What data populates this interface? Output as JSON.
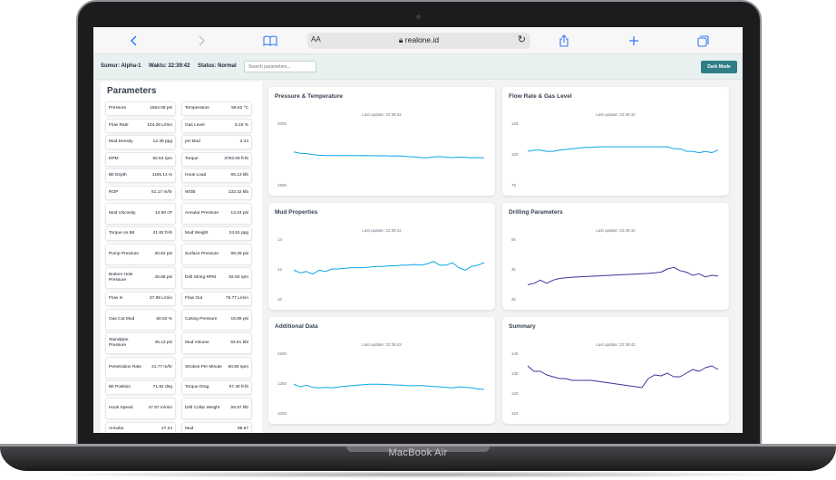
{
  "device": {
    "brand": "MacBook Air"
  },
  "browser": {
    "aa": "AA",
    "url": "realone.id",
    "icons": [
      "chevron-left-icon",
      "chevron-right-icon",
      "book-icon",
      "reload-icon",
      "share-icon",
      "plus-icon",
      "tabs-icon"
    ]
  },
  "header": {
    "sumur": "Sumur: Alpha-1",
    "waktu": "Waktu: 22:39:42",
    "status": "Status: Normal",
    "search_placeholder": "Search parameters...",
    "dark_mode_label": "Dark Mode"
  },
  "sidebar": {
    "title": "Parameters",
    "params": [
      {
        "name": "Pressure",
        "value": "1564.08 psi"
      },
      {
        "name": "Temperature",
        "value": "59.62 °C"
      },
      {
        "name": "Flow Rate",
        "value": "104.28 L/min"
      },
      {
        "name": "Gas Level",
        "value": "5.18 %"
      },
      {
        "name": "Mud Density",
        "value": "12.38 ppg"
      },
      {
        "name": "pH Mud",
        "value": "3.44"
      },
      {
        "name": "RPM",
        "value": "92.64 rpm"
      },
      {
        "name": "Torque",
        "value": "3763.09 ft-lb"
      },
      {
        "name": "Bit Depth",
        "value": "1165.14 m"
      },
      {
        "name": "Hook Load",
        "value": "65.13 klb"
      },
      {
        "name": "ROP",
        "value": "51.17 m/hr"
      },
      {
        "name": "WOB",
        "value": "133.42 klb"
      },
      {
        "name": "Mud Viscosity",
        "value": "14.60 cP",
        "tall": true
      },
      {
        "name": "Annular Pressure",
        "value": "13.24 psi",
        "tall": true
      },
      {
        "name": "Torque on Bit",
        "value": "41.82 ft-lb"
      },
      {
        "name": "Mud Weight",
        "value": "24.51 ppg"
      },
      {
        "name": "Pump Pressure",
        "value": "30.62 psi",
        "tall": true
      },
      {
        "name": "Surface Pressure",
        "value": "99.29 psi",
        "tall": true
      },
      {
        "name": "Bottom Hole Pressure",
        "value": "46.85 psi",
        "tall": true
      },
      {
        "name": "Drill String RPM",
        "value": "92.90 rpm",
        "tall": true
      },
      {
        "name": "Flow In",
        "value": "37.99 L/min"
      },
      {
        "name": "Flow Out",
        "value": "76.77 L/min"
      },
      {
        "name": "Gas Cut Mud",
        "value": "50.82 %",
        "tall": true
      },
      {
        "name": "Casing Pressure",
        "value": "15.89 psi",
        "tall": true
      },
      {
        "name": "Standpipe Pressure",
        "value": "46.13 psi",
        "tall": true
      },
      {
        "name": "Mud Volume",
        "value": "93.91 bbl",
        "tall": true
      },
      {
        "name": "Penetration Rate",
        "value": "21.77 m/hr",
        "tall": true
      },
      {
        "name": "Strokes Per Minute",
        "value": "60.80 spm",
        "tall": true
      },
      {
        "name": "Bit Position",
        "value": "71.82 deg"
      },
      {
        "name": "Torque Drag",
        "value": "57.40 ft-lb"
      },
      {
        "name": "Hook Speed",
        "value": "47.97 m/min",
        "tall": true
      },
      {
        "name": "Drill Collar Weight",
        "value": "59.97 klb",
        "tall": true
      },
      {
        "name": "Annular",
        "value": "27.24"
      },
      {
        "name": "Mud",
        "value": "98.67"
      }
    ]
  },
  "chart_data": [
    {
      "type": "line",
      "title": "Pressure & Temperature",
      "updated": "Last update: 22:39:42",
      "yticks": [
        "2000",
        "1500"
      ],
      "ylim": [
        1100,
        2100
      ],
      "color": "#0ea5e9",
      "x": [
        0,
        1,
        2,
        3,
        4,
        5,
        6,
        7,
        8,
        9,
        10,
        11,
        12,
        13,
        14,
        15,
        16,
        17,
        18,
        19,
        20,
        21,
        22,
        23,
        24,
        25,
        26,
        27,
        28,
        29,
        30
      ],
      "values": [
        1630,
        1610,
        1605,
        1590,
        1580,
        1575,
        1575,
        1578,
        1575,
        1576,
        1574,
        1575,
        1573,
        1572,
        1574,
        1570,
        1571,
        1568,
        1560,
        1555,
        1545,
        1540,
        1555,
        1560,
        1550,
        1545,
        1552,
        1548,
        1540,
        1545,
        1540
      ]
    },
    {
      "type": "line",
      "title": "Flow Rate & Gas Level",
      "updated": "Last update: 22:39:42",
      "yticks": [
        "125",
        "100",
        "75"
      ],
      "ylim": [
        75,
        125
      ],
      "color": "#0ea5e9",
      "x": [
        0,
        1,
        2,
        3,
        4,
        5,
        6,
        7,
        8,
        9,
        10,
        11,
        12,
        13,
        14,
        15,
        16,
        17,
        18,
        19,
        20,
        21,
        22,
        23,
        24,
        25,
        26,
        27,
        28,
        29,
        30
      ],
      "values": [
        102,
        103,
        103,
        102,
        102,
        103,
        103.5,
        104,
        104.5,
        105,
        105,
        105.5,
        105.5,
        105.5,
        105.5,
        105.5,
        105.5,
        105.5,
        105.5,
        105.5,
        105.5,
        105.5,
        105.5,
        104,
        104,
        102,
        102,
        101,
        102,
        101,
        103
      ]
    },
    {
      "type": "line",
      "title": "Mud Properties",
      "updated": "Last update: 22:39:42",
      "yticks": [
        "14",
        "12",
        "10"
      ],
      "ylim": [
        9.5,
        14.5
      ],
      "color": "#0ea5e9",
      "x": [
        0,
        1,
        2,
        3,
        4,
        5,
        6,
        7,
        8,
        9,
        10,
        11,
        12,
        13,
        14,
        15,
        16,
        17,
        18,
        19,
        20,
        21,
        22,
        23,
        24,
        25,
        26,
        27,
        28,
        29,
        30
      ],
      "values": [
        11.9,
        11.7,
        11.8,
        11.6,
        11.9,
        11.8,
        12.0,
        12.0,
        12.05,
        12.1,
        12.1,
        12.1,
        12.15,
        12.2,
        12.2,
        12.25,
        12.25,
        12.3,
        12.3,
        12.35,
        12.3,
        12.4,
        12.6,
        12.3,
        12.3,
        12.5,
        12.1,
        11.9,
        12.2,
        12.3,
        12.5
      ]
    },
    {
      "type": "line",
      "title": "Drilling Parameters",
      "updated": "Last update: 22:39:42",
      "yticks": [
        "5k",
        "4k",
        "3k"
      ],
      "ylim": [
        3000,
        5000
      ],
      "color": "#4c2c9c",
      "x": [
        0,
        1,
        2,
        3,
        4,
        5,
        6,
        7,
        8,
        9,
        10,
        11,
        12,
        13,
        14,
        15,
        16,
        17,
        18,
        19,
        20,
        21,
        22,
        23,
        24,
        25,
        26,
        27,
        28,
        29,
        30
      ],
      "values": [
        3500,
        3550,
        3650,
        3550,
        3650,
        3700,
        3720,
        3740,
        3750,
        3760,
        3770,
        3780,
        3790,
        3800,
        3810,
        3820,
        3830,
        3840,
        3850,
        3860,
        3880,
        3900,
        4000,
        4050,
        3950,
        3900,
        3800,
        3850,
        3750,
        3800,
        3780
      ]
    },
    {
      "type": "line",
      "title": "Additional Data",
      "updated": "Last update: 22:39:42",
      "yticks": [
        "1500",
        "1250",
        "1000"
      ],
      "ylim": [
        950,
        1550
      ],
      "color": "#0ea5e9",
      "x": [
        0,
        1,
        2,
        3,
        4,
        5,
        6,
        7,
        8,
        9,
        10,
        11,
        12,
        13,
        14,
        15,
        16,
        17,
        18,
        19,
        20,
        21,
        22,
        23,
        24,
        25,
        26,
        27,
        28,
        29,
        30
      ],
      "values": [
        1240,
        1215,
        1230,
        1210,
        1205,
        1210,
        1205,
        1212,
        1220,
        1225,
        1230,
        1235,
        1240,
        1240,
        1238,
        1235,
        1232,
        1230,
        1225,
        1225,
        1228,
        1222,
        1218,
        1215,
        1210,
        1205,
        1215,
        1210,
        1205,
        1195,
        1190
      ]
    },
    {
      "type": "line",
      "title": "Summary",
      "updated": "Last update: 22:39:42",
      "yticks": [
        "140",
        "130",
        "120",
        "110"
      ],
      "ylim": [
        110,
        145
      ],
      "color": "#4c2c9c",
      "x": [
        0,
        1,
        2,
        3,
        4,
        5,
        6,
        7,
        8,
        9,
        10,
        11,
        12,
        13,
        14,
        15,
        16,
        17,
        18,
        19,
        20,
        21,
        22,
        23,
        24,
        25,
        26,
        27,
        28,
        29,
        30
      ],
      "values": [
        137,
        134,
        134,
        132,
        131,
        130,
        130,
        129,
        129,
        129,
        129,
        128.5,
        128,
        127.5,
        127,
        126.5,
        126,
        125.5,
        125,
        130,
        132,
        131.5,
        133,
        131,
        131,
        133,
        135,
        134,
        136,
        137,
        135
      ]
    }
  ]
}
